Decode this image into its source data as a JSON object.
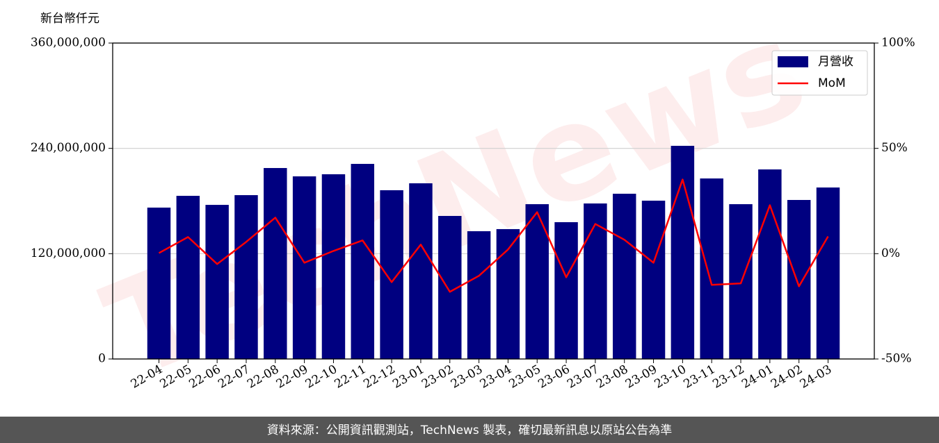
{
  "chart_data": {
    "type": "bar-line",
    "y_label": "新台幣仟元",
    "watermark": "TechNews",
    "footer": "資料來源：公開資訊觀測站，TechNews 製表，確切最新訊息以原站公告為準",
    "categories": [
      "22-04",
      "22-05",
      "22-06",
      "22-07",
      "22-08",
      "22-09",
      "22-10",
      "22-11",
      "22-12",
      "23-01",
      "23-02",
      "23-03",
      "23-04",
      "23-05",
      "23-06",
      "23-07",
      "23-08",
      "23-09",
      "23-10",
      "23-11",
      "23-12",
      "24-01",
      "24-02",
      "24-03"
    ],
    "series": [
      {
        "name": "月營收",
        "type": "bar",
        "color": "#000080",
        "values": [
          172500000,
          185900000,
          175600000,
          186700000,
          217600000,
          208100000,
          210500000,
          222300000,
          192300000,
          200200000,
          163000000,
          145600000,
          148000000,
          176400000,
          155900000,
          177200000,
          188300000,
          180400000,
          242900000,
          205700000,
          176400000,
          216000000,
          181200000,
          195400000
        ]
      },
      {
        "name": "MoM",
        "type": "line",
        "color": "#ff0000",
        "axis": "y2",
        "values": [
          0.3,
          7.9,
          -4.9,
          5.6,
          17.1,
          -4.3,
          1.3,
          6.3,
          -13.5,
          4.3,
          -18.1,
          -10.5,
          2.0,
          19.7,
          -11.2,
          14.1,
          6.6,
          -4.3,
          35.2,
          -14.8,
          -14.1,
          23.0,
          -15.5,
          8.2
        ]
      }
    ],
    "ylim": [
      0,
      360000000
    ],
    "yticks": [
      0,
      {
        "value": 120000000,
        "label": "120,000,000"
      },
      {
        "value": 240000000,
        "label": "240,000,000"
      },
      {
        "value": 360000000,
        "label": "360,000,000"
      }
    ],
    "y2lim": [
      -50,
      100
    ],
    "y2ticks": [
      {
        "value": -50,
        "label": "-50%"
      },
      {
        "value": 0,
        "label": "0%"
      },
      {
        "value": 50,
        "label": "50%"
      },
      {
        "value": 100,
        "label": "100%"
      }
    ],
    "grid": true,
    "legend": "upper right"
  }
}
